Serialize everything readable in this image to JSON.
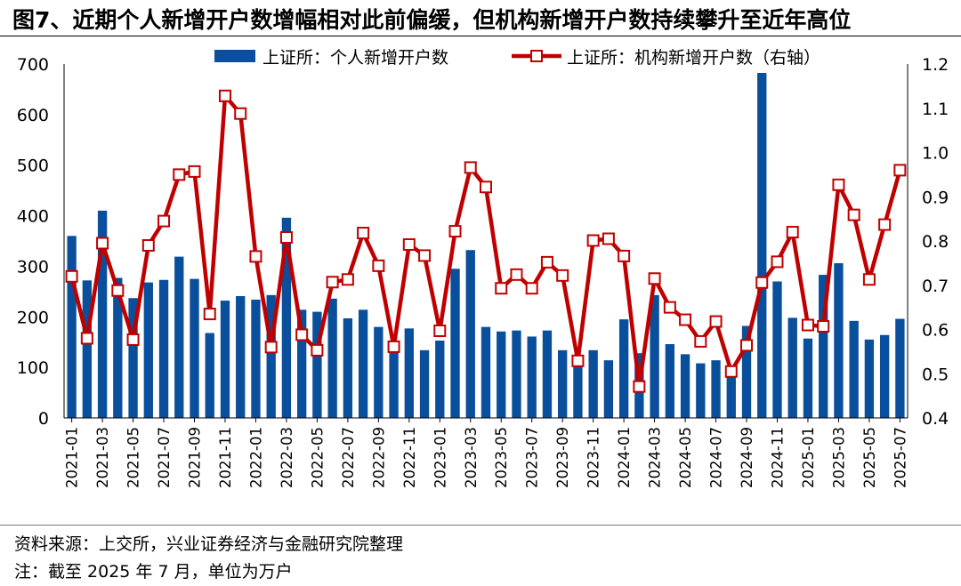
{
  "figure": {
    "title": "图7、近期个人新增开户数增幅相对此前偏缓，但机构新增开户数持续攀升至近年高位",
    "source_note": "资料来源：上交所，兴业证券经济与金融研究院整理",
    "remark_note": "注：截至 2025 年 7 月，单位为万户"
  },
  "colors": {
    "bar": "#0a4f9c",
    "line": "#c00000",
    "marker_fill": "#ffffff"
  },
  "chart_data": {
    "type": "bar",
    "x": [
      "2021-01",
      "2021-02",
      "2021-03",
      "2021-04",
      "2021-05",
      "2021-06",
      "2021-07",
      "2021-08",
      "2021-09",
      "2021-10",
      "2021-11",
      "2021-12",
      "2022-01",
      "2022-02",
      "2022-03",
      "2022-04",
      "2022-05",
      "2022-06",
      "2022-07",
      "2022-08",
      "2022-09",
      "2022-10",
      "2022-11",
      "2022-12",
      "2023-01",
      "2023-02",
      "2023-03",
      "2023-04",
      "2023-05",
      "2023-06",
      "2023-07",
      "2023-08",
      "2023-09",
      "2023-10",
      "2023-11",
      "2023-12",
      "2024-01",
      "2024-02",
      "2024-03",
      "2024-04",
      "2024-05",
      "2024-06",
      "2024-07",
      "2024-08",
      "2024-09",
      "2024-10",
      "2024-11",
      "2024-12",
      "2025-01",
      "2025-02",
      "2025-03",
      "2025-04",
      "2025-05",
      "2025-06",
      "2025-07"
    ],
    "x_tick_labels": [
      "2021-01",
      "2021-03",
      "2021-05",
      "2021-07",
      "2021-09",
      "2021-11",
      "2022-01",
      "2022-03",
      "2022-05",
      "2022-07",
      "2022-09",
      "2022-11",
      "2023-01",
      "2023-03",
      "2023-05",
      "2023-07",
      "2023-09",
      "2023-11",
      "2024-01",
      "2024-03",
      "2024-05",
      "2024-07",
      "2024-09",
      "2024-11",
      "2025-01",
      "2025-03",
      "2025-05",
      "2025-07"
    ],
    "series": [
      {
        "name": "上证所：个人新增开户数",
        "type": "bar",
        "axis": "left",
        "values": [
          360,
          272,
          410,
          277,
          237,
          268,
          273,
          319,
          275,
          168,
          232,
          241,
          234,
          243,
          396,
          214,
          210,
          236,
          197,
          214,
          180,
          144,
          177,
          134,
          153,
          295,
          332,
          180,
          171,
          173,
          161,
          173,
          134,
          116,
          134,
          114,
          195,
          128,
          243,
          146,
          126,
          108,
          114,
          95,
          182,
          684,
          270,
          198,
          157,
          283,
          306,
          192,
          155,
          164,
          196
        ]
      },
      {
        "name": "上证所：机构新增开户数（右轴）",
        "type": "line",
        "axis": "right",
        "values": [
          0.72,
          0.58,
          0.795,
          0.688,
          0.577,
          0.79,
          0.845,
          0.95,
          0.957,
          0.635,
          1.128,
          1.088,
          0.765,
          0.56,
          0.808,
          0.588,
          0.553,
          0.707,
          0.713,
          0.818,
          0.744,
          0.561,
          0.792,
          0.767,
          0.597,
          0.822,
          0.966,
          0.922,
          0.693,
          0.724,
          0.693,
          0.752,
          0.722,
          0.529,
          0.801,
          0.805,
          0.766,
          0.471,
          0.715,
          0.65,
          0.622,
          0.573,
          0.618,
          0.505,
          0.564,
          0.706,
          0.753,
          0.82,
          0.61,
          0.607,
          0.927,
          0.859,
          0.713,
          0.837,
          0.96
        ]
      }
    ],
    "y_left": {
      "min": 0,
      "max": 700,
      "ticks": [
        0,
        100,
        200,
        300,
        400,
        500,
        600,
        700
      ]
    },
    "y_right": {
      "min": 0.4,
      "max": 1.2,
      "ticks": [
        "0.4",
        "0.5",
        "0.6",
        "0.7",
        "0.8",
        "0.9",
        "1.0",
        "1.1",
        "1.2"
      ]
    },
    "grid": false,
    "legend_position": "top"
  }
}
